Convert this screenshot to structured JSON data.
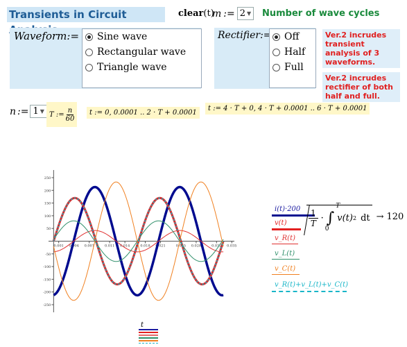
{
  "header": {
    "title": "Transients in Circuit Analysis",
    "clear_label": "clear",
    "clear_arg": "(t)",
    "m_label": "m",
    "assign": ":=",
    "m_value": "2",
    "wave_cycles_label": "Number of wave cycles"
  },
  "waveform": {
    "label": "Waveform",
    "assign": ":=",
    "options": [
      "Sine wave",
      "Rectangular wave",
      "Triangle wave"
    ],
    "selected_index": 0
  },
  "rectifier": {
    "label": "Rectifier",
    "assign": ":=",
    "options": [
      "Off",
      "Half",
      "Full"
    ],
    "selected_index": 0
  },
  "notes": [
    "Ver.2  incrudes transient analysis of 3 waveforms.",
    "Ver.2  incrudes rectifier of both half and full."
  ],
  "params": {
    "n_label": "n",
    "assign": ":=",
    "n_value": "1",
    "T_def_lhs": "T :=",
    "T_num": "n",
    "T_den": "60",
    "t_def1": "t := 0, 0.0001 .. 2 · T + 0.0001",
    "t_def2": "t := 4 · T + 0, 4 · T + 0.0001 .. 6 · T + 0.0001"
  },
  "chart_data": {
    "type": "line",
    "x_ticks": [
      "0.001",
      "0.004",
      "0.007",
      "0.011",
      "0.014",
      "0.018",
      "0.021",
      "0.025",
      "0.028",
      "0.032",
      "0.035"
    ],
    "y_ticks": [
      "250",
      "200",
      "150",
      "100",
      "50",
      "-50",
      "-100",
      "-150",
      "-200",
      "-250"
    ],
    "xlim": [
      -0.001,
      0.0355
    ],
    "ylim": [
      -280,
      280
    ],
    "series": [
      {
        "name": "i(t)·200",
        "color": "#000b8f",
        "amplitude": 213,
        "phase_deg": -85,
        "width": 3.5
      },
      {
        "name": "v(t)",
        "color": "#e32020",
        "amplitude": 170,
        "phase_deg": 0,
        "width": 3
      },
      {
        "name": "v_R(t)",
        "color": "#e03030",
        "amplitude": 42,
        "phase_deg": -85,
        "width": 1
      },
      {
        "name": "v_L(t)",
        "color": "#2f8f6a",
        "amplitude": 80,
        "phase_deg": 5,
        "width": 1
      },
      {
        "name": "v_C(t)",
        "color": "#f08020",
        "amplitude": 233,
        "phase_deg": -175,
        "width": 1
      },
      {
        "name": "v_R(t)+v_L(t)+v_C(t)",
        "color": "#19b6c8",
        "amplitude": 170,
        "phase_deg": 0,
        "width": 1.5,
        "dash": true
      }
    ],
    "period": 0.016667
  },
  "rms": {
    "one": "1",
    "T": "T",
    "integrand": "v(t)",
    "power": "2",
    "lower": "0",
    "upper": "T",
    "dt": "dt",
    "arrow": "→",
    "result": "120"
  },
  "bottom": {
    "t_label": "t",
    "swatches": [
      "#1a1aa0",
      "#e32020",
      "#e86868",
      "#2f8f6a",
      "#f08020",
      "#19b6c8"
    ]
  }
}
